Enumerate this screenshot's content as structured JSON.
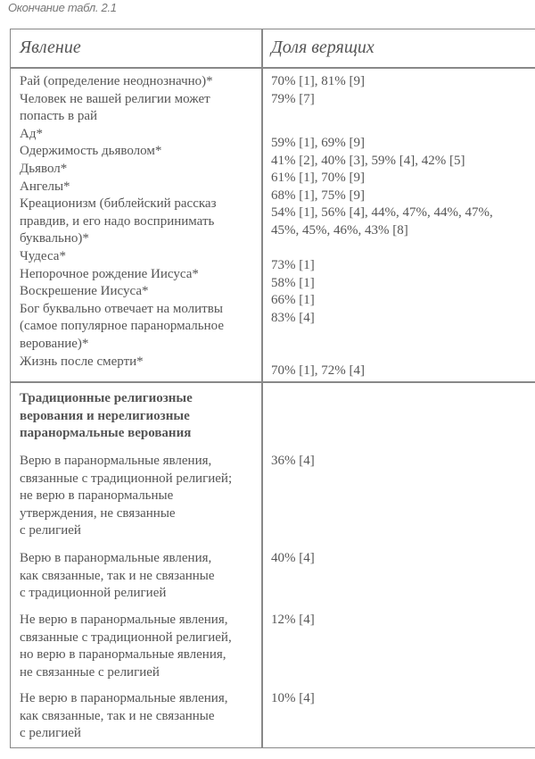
{
  "caption": "Окончание табл. 2.1",
  "header": {
    "col1": "Явление",
    "col2": "Доля верящих"
  },
  "section1": {
    "left_lines": [
      "Рай (определение неоднозначно)*",
      "Человек не вашей религии может",
      "попасть в рай",
      "Ад*",
      "Одержимость дьяволом*",
      "Дьявол*",
      "Ангелы*",
      "Креационизм (библейский рассказ",
      "правдив, и его надо воспринимать",
      "буквально)*",
      "Чудеса*",
      "Непорочное рождение Иисуса*",
      "Воскрешение Иисуса*",
      "Бог буквально отвечает на молитвы",
      "(самое популярное паранормальное",
      "верование)*",
      "Жизнь после смерти*"
    ],
    "right_group_a": [
      "70% [1], 81% [9]",
      "79% [7]"
    ],
    "right_group_b": [
      "59% [1], 69% [9]",
      "41% [2], 40% [3], 59% [4], 42% [5]",
      "61% [1], 70% [9]",
      "68% [1], 75% [9]",
      "54% [1], 56% [4], 44%, 47%, 44%, 47%,",
      "45%, 45%, 46%, 43% [8]"
    ],
    "right_group_c": [
      "73% [1]",
      "58% [1]",
      "66% [1]",
      "83% [4]"
    ],
    "right_group_d": [
      "70% [1], 72% [4]"
    ]
  },
  "section2": {
    "heading_lines": [
      "Традиционные религиозные",
      "верования и нерелигиозные",
      "паранормальные верования"
    ],
    "items": [
      {
        "lines": [
          "Верю в паранормальные явления,",
          "связанные с традиционной религией;",
          "не верю в паранормальные",
          "утверждения, не связанные",
          "с религией"
        ],
        "value": "36% [4]"
      },
      {
        "lines": [
          "Верю в паранормальные явления,",
          "как связанные, так и не связанные",
          "с традиционной религией"
        ],
        "value": "40% [4]"
      },
      {
        "lines": [
          "Не верю в паранормальные явления,",
          "связанные с традиционной религией,",
          "но верю в паранормальные явления,",
          "не связанные с религией"
        ],
        "value": "12% [4]"
      },
      {
        "lines": [
          "Не верю в паранормальные явления,",
          "как связанные, так и не связанные",
          "с религией"
        ],
        "value": "10% [4]"
      }
    ]
  }
}
